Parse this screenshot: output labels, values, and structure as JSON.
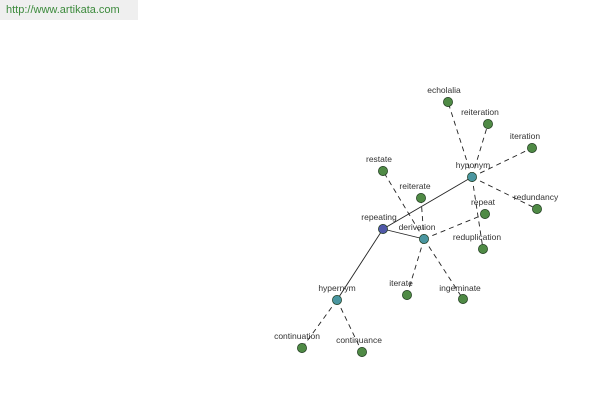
{
  "url_text": "http://www.artikata.com",
  "colors": {
    "center": "#5058a8",
    "group": "#4a96a0",
    "leaf": "#4f8a45",
    "edge": "#222222",
    "label": "#333333",
    "url": "#3c8a3c"
  },
  "nodes": [
    {
      "id": "repeating",
      "label": "repeating",
      "kind": "center"
    },
    {
      "id": "hyponym",
      "label": "hyponym",
      "kind": "group"
    },
    {
      "id": "derivation",
      "label": "derivation",
      "kind": "group"
    },
    {
      "id": "hypernym",
      "label": "hypernym",
      "kind": "group"
    },
    {
      "id": "echolalia",
      "label": "echolalia",
      "kind": "leaf"
    },
    {
      "id": "reiteration",
      "label": "reiteration",
      "kind": "leaf"
    },
    {
      "id": "iteration",
      "label": "iteration",
      "kind": "leaf"
    },
    {
      "id": "redundancy",
      "label": "redundancy",
      "kind": "leaf"
    },
    {
      "id": "repeat",
      "label": "repeat",
      "kind": "leaf"
    },
    {
      "id": "reduplication",
      "label": "reduplication",
      "kind": "leaf"
    },
    {
      "id": "restate",
      "label": "restate",
      "kind": "leaf"
    },
    {
      "id": "reiterate",
      "label": "reiterate",
      "kind": "leaf"
    },
    {
      "id": "iterate",
      "label": "iterate",
      "kind": "leaf"
    },
    {
      "id": "ingeminate",
      "label": "ingeminate",
      "kind": "leaf"
    },
    {
      "id": "continuation",
      "label": "continuation",
      "kind": "leaf"
    },
    {
      "id": "continuance",
      "label": "continuance",
      "kind": "leaf"
    }
  ],
  "edges": [
    {
      "from": "repeating",
      "to": "hyponym",
      "style": "solid"
    },
    {
      "from": "repeating",
      "to": "derivation",
      "style": "solid"
    },
    {
      "from": "repeating",
      "to": "hypernym",
      "style": "solid"
    },
    {
      "from": "hyponym",
      "to": "echolalia",
      "style": "dashed"
    },
    {
      "from": "hyponym",
      "to": "reiteration",
      "style": "dashed"
    },
    {
      "from": "hyponym",
      "to": "iteration",
      "style": "dashed"
    },
    {
      "from": "hyponym",
      "to": "redundancy",
      "style": "dashed"
    },
    {
      "from": "hyponym",
      "to": "reduplication",
      "style": "dashed"
    },
    {
      "from": "derivation",
      "to": "repeat",
      "style": "dashed"
    },
    {
      "from": "derivation",
      "to": "restate",
      "style": "dashed"
    },
    {
      "from": "derivation",
      "to": "reiterate",
      "style": "dashed"
    },
    {
      "from": "derivation",
      "to": "iterate",
      "style": "dashed"
    },
    {
      "from": "derivation",
      "to": "ingeminate",
      "style": "dashed"
    },
    {
      "from": "hypernym",
      "to": "continuation",
      "style": "dashed"
    },
    {
      "from": "hypernym",
      "to": "continuance",
      "style": "dashed"
    }
  ]
}
